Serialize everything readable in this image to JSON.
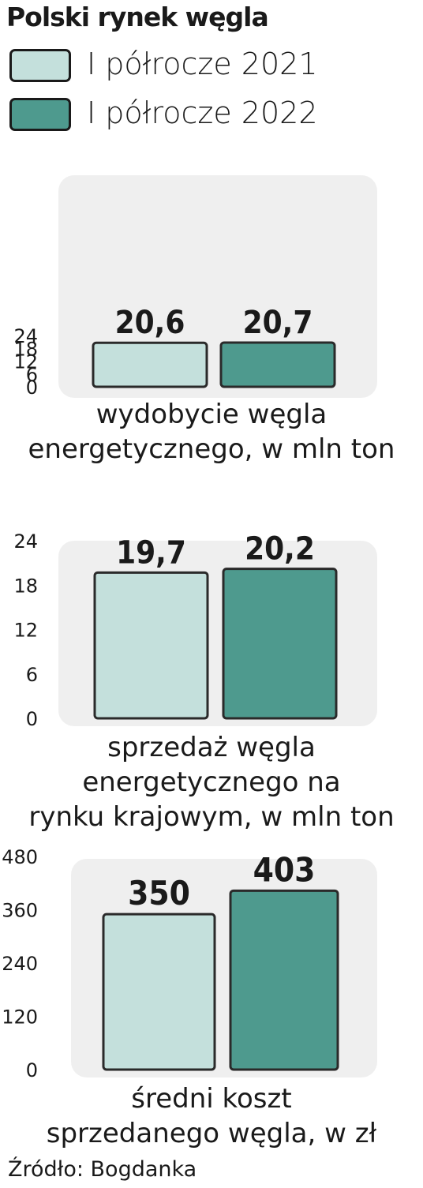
{
  "title": "Polski rynek węgla",
  "legend": [
    {
      "label": "I półrocze 2021",
      "color": "#c4e0dc"
    },
    {
      "label": "I półrocze 2022",
      "color": "#4e9a8e"
    }
  ],
  "colors": {
    "panel": "#efefef",
    "edge": "#2a2a2a",
    "text": "#1a1a1a"
  },
  "chart_data": [
    {
      "type": "bar",
      "categories": [
        "I półrocze 2021",
        "I półrocze 2022"
      ],
      "values": [
        20.6,
        20.7
      ],
      "value_labels": [
        "20,6",
        "20,7"
      ],
      "ylim": [
        0,
        24
      ],
      "yticks": [
        0,
        6,
        12,
        18,
        24
      ],
      "ytick_labels": [
        "0",
        "6",
        "12",
        "18",
        "24"
      ],
      "caption": [
        "wydobycie węgla",
        "energetycznego, w mln ton"
      ]
    },
    {
      "type": "bar",
      "categories": [
        "I półrocze 2021",
        "I półrocze 2022"
      ],
      "values": [
        19.7,
        20.2
      ],
      "value_labels": [
        "19,7",
        "20,2"
      ],
      "ylim": [
        0,
        24
      ],
      "yticks": [
        0,
        6,
        12,
        18,
        24
      ],
      "ytick_labels": [
        "0",
        "6",
        "12",
        "18",
        "24"
      ],
      "caption": [
        "sprzedaż węgla",
        "energetycznego na",
        "rynku krajowym, w mln ton"
      ]
    },
    {
      "type": "bar",
      "categories": [
        "I półrocze 2021",
        "I półrocze 2022"
      ],
      "values": [
        350,
        403
      ],
      "value_labels": [
        "350",
        "403"
      ],
      "ylim": [
        0,
        480
      ],
      "yticks": [
        0,
        120,
        240,
        360,
        480
      ],
      "ytick_labels": [
        "0",
        "120",
        "240",
        "360",
        "480"
      ],
      "caption": [
        "średni koszt",
        "sprzedanego węgla, w zł"
      ]
    }
  ],
  "source": "Źródło: Bogdanka"
}
